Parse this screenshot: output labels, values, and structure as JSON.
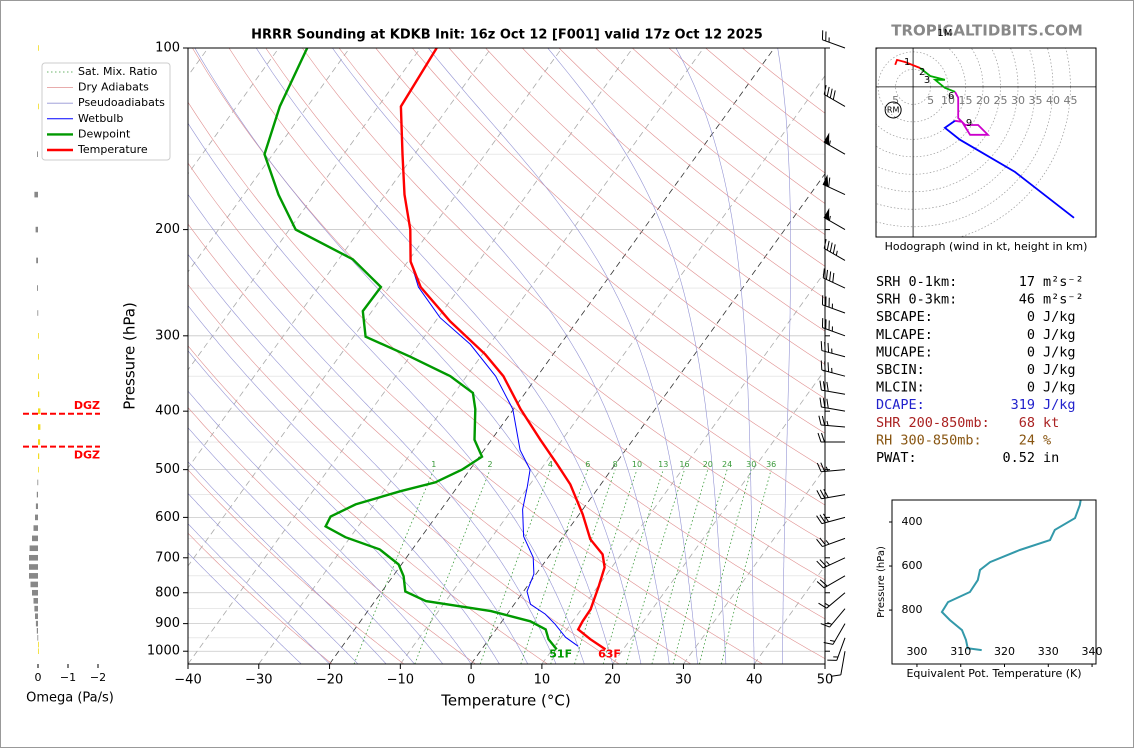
{
  "watermark": "TROPICALTIDBITS.COM",
  "chart_data": [
    {
      "type": "skewt",
      "title": "HRRR Sounding at KDKB Init: 16z Oct 12 [F001] valid 17z Oct 12 2025",
      "x_label": "Temperature (°C)",
      "y_label": "Pressure (hPa)",
      "xlim": [
        -40,
        50
      ],
      "xticks": [
        {
          "value": -40,
          "label": "−40"
        },
        {
          "value": -30,
          "label": "−30"
        },
        {
          "value": -20,
          "label": "−20"
        },
        {
          "value": -10,
          "label": "−10"
        },
        0,
        10,
        20,
        30,
        40,
        50
      ],
      "ylim": [
        1050,
        100
      ],
      "log_y": true,
      "yticks": [
        100,
        200,
        300,
        400,
        500,
        600,
        700,
        800,
        900,
        1000
      ],
      "grid": true,
      "reference_lines": [
        {
          "name": "Sat. Mix. Ratio",
          "color": "#3a9a3a",
          "style": "dotted"
        },
        {
          "name": "Dry Adiabats",
          "color": "#e09090",
          "style": "solid"
        },
        {
          "name": "Pseudoadiabats",
          "color": "#9494d4",
          "style": "solid"
        }
      ],
      "mixing_ratios": [
        1,
        2,
        4,
        6,
        8,
        10,
        13,
        16,
        20,
        24,
        30,
        36
      ],
      "series": [
        {
          "name": "Wetbulb",
          "color": "#0000ff",
          "pressure": [
            981,
            948,
            902,
            868,
            836,
            796,
            745,
            699,
            645,
            582,
            535,
            500,
            464,
            397,
            350,
            310,
            280,
            249,
            226,
            200
          ],
          "values": [
            13.3,
            10.6,
            7.8,
            5.4,
            2.3,
            0.5,
            -0.3,
            -2.1,
            -5.6,
            -8.5,
            -10.1,
            -11.5,
            -14.9,
            -20.1,
            -25.9,
            -32.7,
            -39.7,
            -45.9,
            -49.6,
            -52.9
          ]
        },
        {
          "name": "Dewpoint",
          "color": "#009900",
          "surface_label": "51F",
          "pressure": [
            993,
            955,
            920,
            892,
            858,
            826,
            796,
            751,
            718,
            678,
            647,
            621,
            598,
            571,
            543,
            525,
            500,
            476,
            446,
            397,
            373,
            350,
            325,
            301,
            273,
            249,
            224,
            200,
            175,
            150,
            125,
            100
          ],
          "values": [
            10.6,
            8.4,
            7.0,
            4.0,
            -2.6,
            -12.8,
            -16.7,
            -18.5,
            -20.4,
            -24.6,
            -30.7,
            -34.6,
            -34.9,
            -32.6,
            -27.6,
            -23.6,
            -21.1,
            -19.6,
            -22.4,
            -25.4,
            -27.4,
            -32.3,
            -39.9,
            -48.3,
            -51.3,
            -51.2,
            -58.0,
            -69.1,
            -75.1,
            -81.2,
            -83.9,
            -86.0
          ]
        },
        {
          "name": "Temperature",
          "color": "#ff0000",
          "surface_label": "63F",
          "pressure": [
            993,
            955,
            920,
            892,
            852,
            780,
            726,
            691,
            652,
            593,
            529,
            490,
            446,
            397,
            350,
            322,
            284,
            249,
            226,
            200,
            175,
            150,
            125,
            100
          ],
          "values": [
            17.5,
            14.3,
            11.6,
            11.4,
            11.3,
            10.1,
            9.0,
            7.4,
            4.1,
            0.5,
            -4.3,
            -8.2,
            -13.1,
            -19.0,
            -24.8,
            -29.6,
            -37.9,
            -45.6,
            -49.6,
            -52.9,
            -57.3,
            -61.7,
            -66.8,
            -67.7
          ]
        }
      ],
      "winds": {
        "pressure": [
          100,
          125,
          150,
          175,
          200,
          225,
          250,
          275,
          300,
          325,
          350,
          375,
          400,
          425,
          450,
          500,
          550,
          600,
          650,
          700,
          750,
          800,
          850,
          900,
          950,
          1000
        ],
        "direction": [
          290,
          300,
          300,
          295,
          300,
          300,
          295,
          290,
          290,
          285,
          285,
          280,
          280,
          275,
          270,
          265,
          260,
          255,
          250,
          245,
          240,
          230,
          220,
          210,
          200,
          190
        ],
        "speed": [
          25,
          40,
          55,
          60,
          55,
          45,
          40,
          35,
          35,
          35,
          35,
          30,
          30,
          25,
          20,
          25,
          30,
          30,
          25,
          25,
          20,
          15,
          15,
          15,
          15,
          10
        ]
      }
    },
    {
      "type": "bar",
      "orientation": "horizontal",
      "x_label": "Omega (Pa/s)",
      "xlim": [
        0.5,
        -2.3
      ],
      "xticks": [
        0,
        {
          "value": -1,
          "label": "−1"
        },
        {
          "value": -2,
          "label": "−2"
        }
      ],
      "ylim": [
        1050,
        100
      ],
      "log_y": true,
      "pressure": [
        100,
        125,
        150,
        175,
        200,
        225,
        250,
        275,
        300,
        325,
        350,
        375,
        400,
        425,
        450,
        475,
        500,
        525,
        550,
        575,
        600,
        625,
        650,
        675,
        700,
        725,
        750,
        775,
        800,
        825,
        850,
        875,
        900,
        925,
        950,
        975,
        1000
      ],
      "values": [
        -0.02,
        -0.02,
        0.03,
        0.12,
        0.08,
        0.06,
        0.03,
        0.02,
        -0.02,
        -0.03,
        -0.03,
        -0.04,
        -0.08,
        -0.08,
        -0.07,
        -0.04,
        -0.02,
        0.02,
        0.04,
        0.07,
        0.1,
        0.15,
        0.2,
        0.28,
        0.3,
        0.3,
        0.3,
        0.25,
        0.2,
        0.15,
        0.12,
        0.1,
        0.07,
        0.04,
        0.02,
        -0.01,
        -0.01
      ],
      "colors": [
        "#f2dc20",
        "#f2dc20",
        "#888888",
        "#888888",
        "#888888",
        "#888888",
        "#888888",
        "#888888",
        "#f2dc20",
        "#f2dc20",
        "#f2dc20",
        "#f2dc20",
        "#f2dc20",
        "#f2dc20",
        "#f2dc20",
        "#f2dc20",
        "#f2dc20",
        "#888888",
        "#888888",
        "#888888",
        "#888888",
        "#888888",
        "#888888",
        "#888888",
        "#888888",
        "#888888",
        "#888888",
        "#888888",
        "#888888",
        "#888888",
        "#888888",
        "#888888",
        "#888888",
        "#888888",
        "#888888",
        "#f2dc20",
        "#f2dc20"
      ],
      "annotations": [
        {
          "text": "DGZ",
          "pressure": 404,
          "color": "#ff0000"
        },
        {
          "text": "DGZ",
          "pressure": 458,
          "color": "#ff0000"
        }
      ]
    },
    {
      "type": "hodograph",
      "caption": "Hodograph (wind in kt, height in km)",
      "xlim": [
        -10.6,
        52.3
      ],
      "ylim": [
        -42.9,
        11.1
      ],
      "rings": [
        5,
        10,
        15,
        20,
        25,
        30,
        35,
        40,
        45
      ],
      "left_ring_labels": [
        5
      ],
      "segments": [
        {
          "color": "#ff0000",
          "u": [
            -5.1,
            -4.6,
            -2.3,
            2.0
          ],
          "v": [
            6.3,
            7.7,
            7.1,
            5.4
          ]
        },
        {
          "color": "#00aa00",
          "u": [
            2.0,
            4.9,
            9.1,
            6.3,
            9.1,
            12.0
          ],
          "v": [
            5.4,
            3.1,
            2.0,
            2.0,
            -0.3,
            -1.4
          ]
        },
        {
          "color": "#cc00cc",
          "u": [
            12.0,
            12.9,
            12.9,
            14.9,
            18.6,
            21.4,
            16.3,
            14.0,
            12.0
          ],
          "v": [
            -1.4,
            -3.1,
            -8.9,
            -10.9,
            -10.9,
            -13.7,
            -13.7,
            -10.0,
            -9.7
          ]
        },
        {
          "color": "#0000ff",
          "u": [
            12.0,
            9.1,
            13.4,
            29.1,
            46.0
          ],
          "v": [
            -9.7,
            -11.7,
            -15.1,
            -24.3,
            -37.4
          ]
        }
      ],
      "height_labels": [
        {
          "text": "1",
          "u": -1.7,
          "v": 7.1
        },
        {
          "text": "2",
          "u": 2.6,
          "v": 4.3
        },
        {
          "text": "3",
          "u": 4.0,
          "v": 2.0
        },
        {
          "text": "6",
          "u": 10.9,
          "v": -2.6
        },
        {
          "text": "9",
          "u": 16.0,
          "v": -10.3
        },
        {
          "text": "1M",
          "u": 9.1,
          "v": 15.4
        }
      ],
      "storm_motion": {
        "label": "RM",
        "u": -5.7,
        "v": -6.6
      }
    },
    {
      "type": "line",
      "x_label": "Equivalent Pot. Temperature (K)",
      "y_label": "Pressure (hPa)",
      "xlim": [
        294.3,
        340.9
      ],
      "ylim": [
        1045,
        300
      ],
      "xticks": [
        300,
        310,
        320,
        330,
        340
      ],
      "yticks": [
        400,
        600,
        800
      ],
      "color": "#3399aa",
      "pressure": [
        982,
        973,
        936,
        891,
        845,
        809,
        764,
        718,
        664,
        618,
        582,
        527,
        482,
        436,
        382,
        323,
        300
      ],
      "values": [
        314.8,
        311.6,
        311.2,
        310.3,
        307.5,
        305.7,
        307.1,
        312.1,
        313.9,
        314.4,
        316.7,
        323.5,
        330.4,
        331.5,
        336.1,
        337.2,
        337.4
      ]
    }
  ],
  "stats": {
    "rows": [
      {
        "label": "SRH 0-1km:",
        "value": 17,
        "unit": "m²s⁻²",
        "color": "#000000"
      },
      {
        "label": "SRH 0-3km:",
        "value": 46,
        "unit": "m²s⁻²",
        "color": "#000000"
      },
      {
        "label": "SBCAPE:",
        "value": 0,
        "unit": "J/kg",
        "color": "#000000"
      },
      {
        "label": "MLCAPE:",
        "value": 0,
        "unit": "J/kg",
        "color": "#000000"
      },
      {
        "label": "MUCAPE:",
        "value": 0,
        "unit": "J/kg",
        "color": "#000000"
      },
      {
        "label": "SBCIN:",
        "value": 0,
        "unit": "J/kg",
        "color": "#000000"
      },
      {
        "label": "MLCIN:",
        "value": 0,
        "unit": "J/kg",
        "color": "#000000"
      },
      {
        "label": "DCAPE:",
        "value": 319,
        "unit": "J/kg",
        "color": "#2222cc"
      },
      {
        "label": "SHR 200-850mb:",
        "value": 68,
        "unit": "kt",
        "color": "#aa2222"
      },
      {
        "label": "RH 300-850mb:",
        "value": 24,
        "unit": "%",
        "color": "#885511"
      },
      {
        "label": "PWAT:",
        "value": 0.52,
        "unit": "in",
        "color": "#000000"
      }
    ]
  }
}
